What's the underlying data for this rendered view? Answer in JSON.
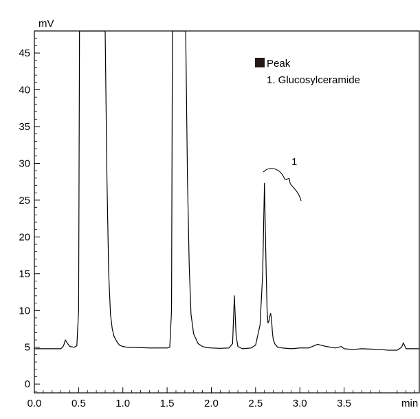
{
  "chart_data": {
    "type": "line",
    "title": "",
    "ylabel": "mV",
    "xlabel": "min",
    "xlim": [
      0.0,
      4.35
    ],
    "ylim": [
      -1.2,
      48.0
    ],
    "x_ticks": [
      0.0,
      0.5,
      1.0,
      1.5,
      2.0,
      2.5,
      3.0,
      3.5
    ],
    "x_tick_labels": [
      "0.0",
      "0.5",
      "1.0",
      "1.5",
      "2.0",
      "2.5",
      "3.0",
      "3.5"
    ],
    "y_ticks": [
      0,
      5,
      10,
      15,
      20,
      25,
      30,
      35,
      40,
      45
    ],
    "y_tick_labels": [
      "0",
      "5",
      "10",
      "15",
      "20",
      "25",
      "30",
      "35",
      "40",
      "45"
    ],
    "grid": false,
    "legend": {
      "placement": "top-right",
      "header": "Peak",
      "entries": [
        "1. Glucosylceramide"
      ]
    },
    "annotations": [
      {
        "label": "1",
        "x": 2.75,
        "y": 29.5,
        "target_peak_x": 2.6
      }
    ],
    "series": [
      {
        "x": [
          0.0,
          0.1,
          0.2,
          0.3,
          0.33,
          0.35,
          0.37,
          0.4,
          0.45,
          0.48,
          0.5,
          0.51,
          0.53,
          0.6,
          0.7,
          0.78,
          0.8,
          0.82,
          0.84,
          0.86,
          0.88,
          0.9,
          0.93,
          0.96,
          1.0,
          1.05,
          1.1,
          1.2,
          1.3,
          1.4,
          1.5,
          1.53,
          1.55,
          1.56,
          1.58,
          1.65,
          1.7,
          1.71,
          1.73,
          1.75,
          1.77,
          1.8,
          1.85,
          1.9,
          1.95,
          2.0,
          2.1,
          2.2,
          2.24,
          2.26,
          2.28,
          2.3,
          2.35,
          2.45,
          2.5,
          2.55,
          2.58,
          2.6,
          2.62,
          2.63,
          2.64,
          2.65,
          2.66,
          2.67,
          2.68,
          2.69,
          2.7,
          2.72,
          2.75,
          2.8,
          2.9,
          3.0,
          3.1,
          3.2,
          3.3,
          3.4,
          3.47,
          3.5,
          3.6,
          3.7,
          3.8,
          3.9,
          4.0,
          4.1,
          4.15,
          4.17,
          4.2,
          4.35
        ],
        "y": [
          4.8,
          4.8,
          4.8,
          4.8,
          5.2,
          6.0,
          5.6,
          5.1,
          5.0,
          5.2,
          10.0,
          48.0,
          48.0,
          48.0,
          48.0,
          48.0,
          48.0,
          28.0,
          15.0,
          9.5,
          7.5,
          6.5,
          5.8,
          5.3,
          5.1,
          5.0,
          5.0,
          4.95,
          4.9,
          4.9,
          4.9,
          5.0,
          10.0,
          48.0,
          48.0,
          48.0,
          48.0,
          48.0,
          28.0,
          16.0,
          9.5,
          6.8,
          5.5,
          5.1,
          4.95,
          4.9,
          4.85,
          4.9,
          5.5,
          12.0,
          6.5,
          5.1,
          4.8,
          4.9,
          5.3,
          8.0,
          15.0,
          27.3,
          15.0,
          10.0,
          8.3,
          8.5,
          9.2,
          9.6,
          8.8,
          7.0,
          6.0,
          5.4,
          5.0,
          4.9,
          4.8,
          4.9,
          4.9,
          5.4,
          5.1,
          4.9,
          5.1,
          4.8,
          4.7,
          4.8,
          4.75,
          4.7,
          4.6,
          4.6,
          5.0,
          5.6,
          4.8,
          4.8
        ]
      }
    ]
  }
}
